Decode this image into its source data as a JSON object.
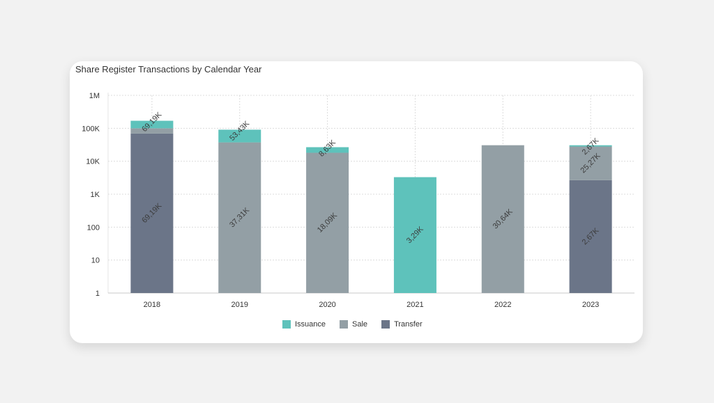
{
  "page": {
    "title": "Share Register Transactions by Calendar Year"
  },
  "colors": {
    "Issuance": "#5ec2bb",
    "Sale": "#939fa5",
    "Transfer": "#6b7588",
    "grid": "#dcdcdc"
  },
  "legend": [
    {
      "name": "Issuance",
      "color": "#5ec2bb"
    },
    {
      "name": "Sale",
      "color": "#939fa5"
    },
    {
      "name": "Transfer",
      "color": "#6b7588"
    }
  ],
  "chart_data": {
    "type": "bar",
    "stacked": true,
    "y_scale": "log",
    "title": "Share Register Transactions by Calendar Year",
    "categories": [
      "2018",
      "2019",
      "2020",
      "2021",
      "2022",
      "2023"
    ],
    "yticks": [
      {
        "value": 1,
        "label": "1"
      },
      {
        "value": 10,
        "label": "10"
      },
      {
        "value": 100,
        "label": "100"
      },
      {
        "value": 1000,
        "label": "1K"
      },
      {
        "value": 10000,
        "label": "10K"
      },
      {
        "value": 100000,
        "label": "100K"
      },
      {
        "value": 1000000,
        "label": "1M"
      }
    ],
    "ylim": [
      1,
      1000000
    ],
    "grid": true,
    "legend_position": "bottom",
    "stacks": [
      {
        "category": "2018",
        "stack_tops": [
          {
            "series": "Transfer",
            "top": 69190,
            "label": "69,19K"
          },
          {
            "series": "Sale",
            "top": 100000,
            "label": ""
          },
          {
            "series": "Issuance",
            "top": 169190,
            "label": "69,19K"
          }
        ]
      },
      {
        "category": "2019",
        "stack_tops": [
          {
            "series": "Sale",
            "top": 37310,
            "label": "37,31K"
          },
          {
            "series": "Issuance",
            "top": 90740,
            "label": "53,43K"
          }
        ]
      },
      {
        "category": "2020",
        "stack_tops": [
          {
            "series": "Sale",
            "top": 18090,
            "label": "18,09K"
          },
          {
            "series": "Issuance",
            "top": 26720,
            "label": "8,63K"
          }
        ]
      },
      {
        "category": "2021",
        "stack_tops": [
          {
            "series": "Issuance",
            "top": 3290,
            "label": "3,29K"
          }
        ]
      },
      {
        "category": "2022",
        "stack_tops": [
          {
            "series": "Sale",
            "top": 30640,
            "label": "30,64K"
          }
        ]
      },
      {
        "category": "2023",
        "stack_tops": [
          {
            "series": "Transfer",
            "top": 2670,
            "label": "2,67K"
          },
          {
            "series": "Sale",
            "top": 27940,
            "label": "25,27K"
          },
          {
            "series": "Issuance",
            "top": 30610,
            "label": "2,67K"
          }
        ]
      }
    ]
  }
}
